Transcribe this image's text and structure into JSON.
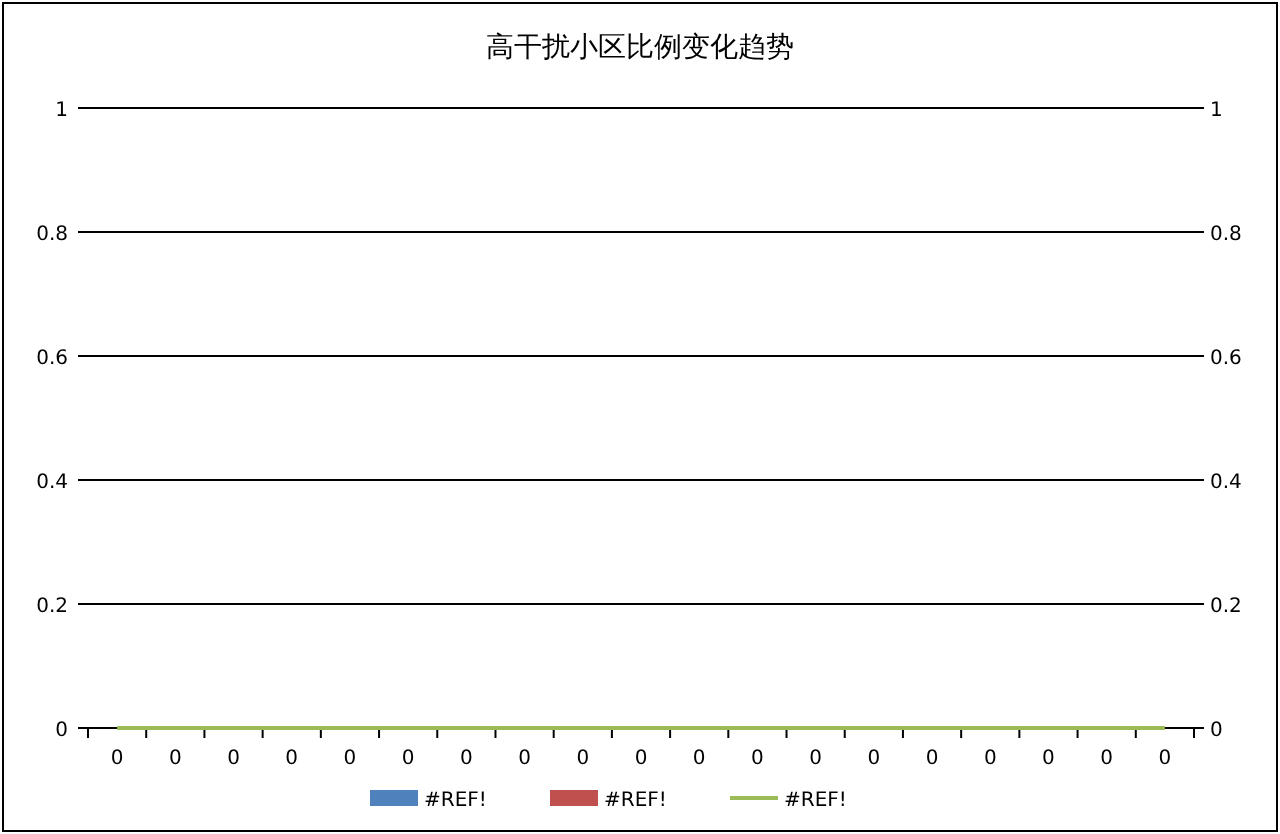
{
  "chart_data": {
    "type": "bar",
    "title": "高干扰小区比例变化趋势",
    "categories": [
      "0",
      "0",
      "0",
      "0",
      "0",
      "0",
      "0",
      "0",
      "0",
      "0",
      "0",
      "0",
      "0",
      "0",
      "0",
      "0",
      "0",
      "0",
      "0"
    ],
    "series": [
      {
        "name": "#REF!",
        "color": "#4f81bd",
        "values": [
          0,
          0,
          0,
          0,
          0,
          0,
          0,
          0,
          0,
          0,
          0,
          0,
          0,
          0,
          0,
          0,
          0,
          0,
          0
        ]
      },
      {
        "name": "#REF!",
        "color": "#c0504d",
        "values": [
          0,
          0,
          0,
          0,
          0,
          0,
          0,
          0,
          0,
          0,
          0,
          0,
          0,
          0,
          0,
          0,
          0,
          0,
          0
        ]
      },
      {
        "name": "#REF!",
        "color": "#9bbb59",
        "type": "line",
        "values": [
          0,
          0,
          0,
          0,
          0,
          0,
          0,
          0,
          0,
          0,
          0,
          0,
          0,
          0,
          0,
          0,
          0,
          0,
          0
        ]
      }
    ],
    "ylim": [
      0,
      1
    ],
    "yticks": [
      0,
      0.2,
      0.4,
      0.6,
      0.8,
      1
    ],
    "y2lim": [
      0,
      1
    ],
    "y2ticks": [
      0,
      0.2,
      0.4,
      0.6,
      0.8,
      1
    ],
    "grid": "y",
    "legend": "bottom"
  }
}
